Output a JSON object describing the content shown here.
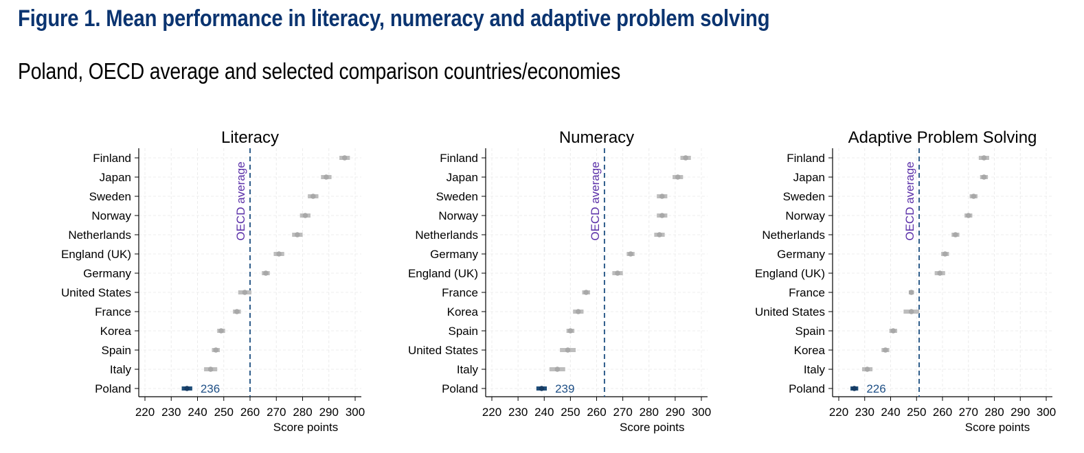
{
  "title": "Figure 1. Mean performance in literacy, numeracy and adaptive problem solving",
  "subtitle": "Poland, OECD average and selected comparison countries/economies",
  "colors": {
    "title": "#0b3470",
    "country_mark": "#bdbdbd",
    "highlight_mark": "#1f4e79",
    "reference_line": "#2e5c8a",
    "reference_label": "#5a2fa8",
    "value_label": "#1e4f86"
  },
  "chart_data": [
    {
      "type": "dot-range",
      "title": "Literacy",
      "xlabel": "Score points",
      "xlim": [
        220,
        300
      ],
      "xticks": [
        "220",
        "230",
        "240",
        "250",
        "260",
        "270",
        "280",
        "290",
        "300"
      ],
      "reference_line": {
        "label": "OECD average",
        "value": 260
      },
      "highlight": {
        "category": "Poland",
        "label": "236"
      },
      "categories": [
        "Finland",
        "Japan",
        "Sweden",
        "Norway",
        "Netherlands",
        "England (UK)",
        "Germany",
        "United States",
        "France",
        "Korea",
        "Spain",
        "Italy",
        "Poland"
      ],
      "values": [
        296,
        289,
        284,
        281,
        278,
        271,
        266,
        258,
        255,
        249,
        247,
        245,
        236
      ],
      "ci_low": [
        294,
        287,
        282,
        279,
        276,
        269,
        264.5,
        255.5,
        253.5,
        247.5,
        245.5,
        242.5,
        234
      ],
      "ci_high": [
        298,
        291,
        286,
        283,
        280,
        273,
        267.5,
        260.5,
        256.5,
        250.5,
        248.5,
        247.5,
        238
      ]
    },
    {
      "type": "dot-range",
      "title": "Numeracy",
      "xlabel": "Score points",
      "xlim": [
        220,
        300
      ],
      "xticks": [
        "220",
        "230",
        "240",
        "250",
        "260",
        "270",
        "280",
        "290",
        "300"
      ],
      "reference_line": {
        "label": "OECD average",
        "value": 263
      },
      "highlight": {
        "category": "Poland",
        "label": "239"
      },
      "categories": [
        "Finland",
        "Japan",
        "Sweden",
        "Norway",
        "Netherlands",
        "Germany",
        "England (UK)",
        "France",
        "Korea",
        "Spain",
        "United States",
        "Italy",
        "Poland"
      ],
      "values": [
        294,
        291,
        285,
        285,
        284,
        273,
        268,
        256,
        253,
        250,
        249,
        245,
        239
      ],
      "ci_low": [
        292,
        289,
        283,
        283,
        282,
        271.5,
        266,
        254.5,
        251,
        248.5,
        246,
        242,
        237
      ],
      "ci_high": [
        296,
        293,
        287,
        287,
        286,
        274.5,
        270,
        257.5,
        255,
        251.5,
        252,
        248,
        241
      ]
    },
    {
      "type": "dot-range",
      "title": "Adaptive Problem Solving",
      "xlabel": "Score points",
      "xlim": [
        220,
        300
      ],
      "xticks": [
        "220",
        "230",
        "240",
        "250",
        "260",
        "270",
        "280",
        "290",
        "300"
      ],
      "reference_line": {
        "label": "OECD average",
        "value": 251
      },
      "highlight": {
        "category": "Poland",
        "label": "226"
      },
      "categories": [
        "Finland",
        "Japan",
        "Sweden",
        "Norway",
        "Netherlands",
        "Germany",
        "England (UK)",
        "France",
        "United States",
        "Spain",
        "Korea",
        "Italy",
        "Poland"
      ],
      "values": [
        276,
        276,
        272,
        270,
        265,
        261,
        259,
        248,
        248,
        241,
        238,
        231,
        226
      ],
      "ci_low": [
        274,
        274.5,
        270.5,
        268.5,
        263.5,
        259.5,
        257,
        247,
        245,
        239.5,
        236.5,
        229,
        224.5
      ],
      "ci_high": [
        278,
        277.5,
        273.5,
        271.5,
        266.5,
        262.5,
        261,
        249,
        251,
        242.5,
        239.5,
        233,
        227.5
      ]
    }
  ]
}
